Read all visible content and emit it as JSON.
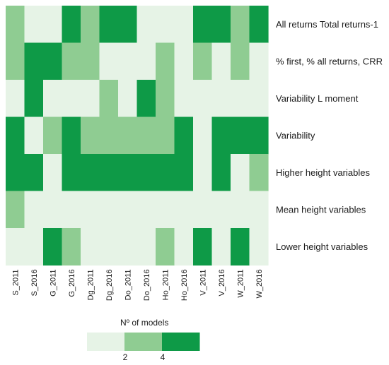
{
  "chart_data": {
    "type": "heatmap",
    "columns": [
      "S_2011",
      "S_2016",
      "G_2011",
      "G_2016",
      "Dg_2011",
      "Dg_2016",
      "Do_2011",
      "Do_2016",
      "Ho_2011",
      "Ho_2016",
      "V_2011",
      "V_2016",
      "W_2011",
      "W_2016"
    ],
    "rows": [
      "All returns Total returns-1",
      "% first, % all returns, CRR",
      "Variability L moment",
      "Variability",
      "Higher height variables",
      "Mean height variables",
      "Lower height variables"
    ],
    "levels": [
      1,
      2,
      3
    ],
    "values": [
      [
        2,
        1,
        1,
        3,
        2,
        3,
        3,
        1,
        1,
        1,
        3,
        3,
        2,
        3
      ],
      [
        2,
        3,
        3,
        2,
        2,
        1,
        1,
        1,
        2,
        1,
        2,
        1,
        2,
        1
      ],
      [
        1,
        3,
        1,
        1,
        1,
        2,
        1,
        3,
        2,
        1,
        1,
        1,
        1,
        1
      ],
      [
        3,
        1,
        2,
        3,
        2,
        2,
        2,
        2,
        2,
        3,
        1,
        3,
        3,
        3
      ],
      [
        3,
        3,
        1,
        3,
        3,
        3,
        3,
        3,
        3,
        3,
        1,
        3,
        1,
        2
      ],
      [
        2,
        1,
        1,
        1,
        1,
        1,
        1,
        1,
        1,
        1,
        1,
        1,
        1,
        1
      ],
      [
        1,
        1,
        3,
        2,
        1,
        1,
        1,
        1,
        2,
        1,
        3,
        1,
        3,
        1
      ]
    ],
    "colors": {
      "1": "#e6f3e6",
      "2": "#8fcc92",
      "3": "#0e9a47"
    },
    "legend": {
      "title": "Nº of models",
      "tick_labels": [
        "2",
        "4"
      ],
      "placement": "bottom-center"
    }
  }
}
